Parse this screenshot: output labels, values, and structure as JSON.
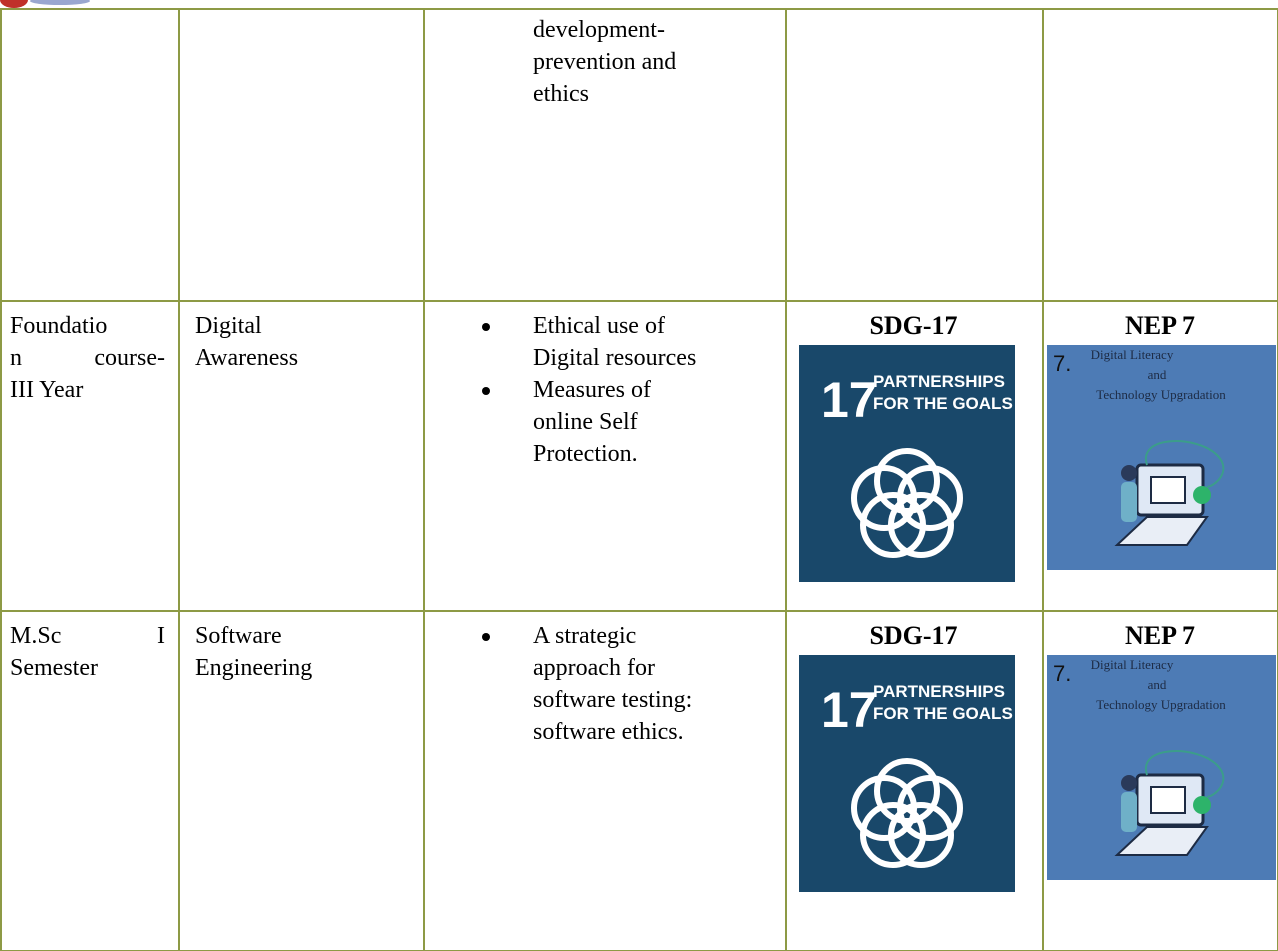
{
  "table": {
    "rows": [
      {
        "topic_lines": [
          "development-",
          "prevention and",
          "ethics"
        ]
      },
      {
        "class_lines": [
          "Foundatio",
          "n course-",
          "III Year"
        ],
        "subject_lines": [
          "Digital",
          "Awareness"
        ],
        "bullets": [
          [
            "Ethical use of",
            "Digital resources"
          ],
          [
            "Measures of",
            "online Self",
            "Protection."
          ]
        ],
        "sdg": {
          "heading": "SDG-17",
          "number": "17",
          "title_lines": [
            "PARTNERSHIPS",
            "FOR THE GOALS"
          ]
        },
        "nep": {
          "heading": "NEP 7",
          "number": "7.",
          "title_lines": [
            "Digital Literacy",
            "and",
            "Technology Upgradation"
          ]
        }
      },
      {
        "class_lines": [
          "M.Sc I",
          "Semester"
        ],
        "subject_lines": [
          "Software",
          "Engineering"
        ],
        "bullets": [
          [
            "A strategic",
            "approach for",
            "software testing:",
            "software ethics."
          ]
        ],
        "sdg": {
          "heading": "SDG-17",
          "number": "17",
          "title_lines": [
            "PARTNERSHIPS",
            "FOR THE GOALS"
          ]
        },
        "nep": {
          "heading": "NEP 7",
          "number": "7.",
          "title_lines": [
            "Digital Literacy",
            "and",
            "Technology Upgradation"
          ]
        }
      }
    ]
  }
}
